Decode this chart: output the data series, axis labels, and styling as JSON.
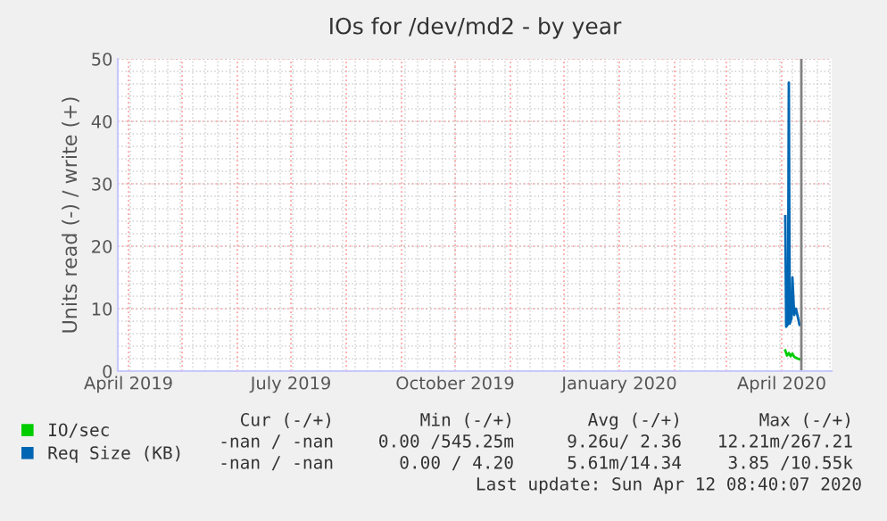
{
  "chart_data": {
    "type": "line",
    "title": "IOs for /dev/md2 - by year",
    "ylabel": "Units read (-) / write (+)",
    "xlim": [
      "2019-03-26",
      "2020-04-29"
    ],
    "xticks": [
      {
        "value": "2019-04-01",
        "label": "April 2019"
      },
      {
        "value": "2019-07-01",
        "label": "July 2019"
      },
      {
        "value": "2019-10-01",
        "label": "October 2019"
      },
      {
        "value": "2020-01-01",
        "label": "January 2020"
      },
      {
        "value": "2020-04-01",
        "label": "April 2020"
      }
    ],
    "ylim": [
      0,
      50
    ],
    "yticks": [
      0,
      10,
      20,
      30,
      40,
      50
    ],
    "grid": true,
    "legend": "bottom left",
    "marker": "none",
    "line_style": "solid",
    "series": [
      {
        "name": "IO/sec",
        "color": "#00cc00",
        "x": [
          "2020-04-03",
          "2020-04-04",
          "2020-04-05",
          "2020-04-06",
          "2020-04-07",
          "2020-04-08",
          "2020-04-10",
          "2020-04-11"
        ],
        "values": [
          3.3,
          2.5,
          2.9,
          2.4,
          2.8,
          2.3,
          2.0,
          1.9
        ]
      },
      {
        "name": "Req Size (KB)",
        "color": "#0066b3",
        "x": [
          "2020-04-03T00:00",
          "2020-04-03T12:00",
          "2020-04-04T12:00",
          "2020-04-05T00:00",
          "2020-04-05T12:00",
          "2020-04-06T12:00",
          "2020-04-07T00:00",
          "2020-04-08T00:00",
          "2020-04-09T00:00",
          "2020-04-11T00:00"
        ],
        "values": [
          24.8,
          7.1,
          7.5,
          46.2,
          7.6,
          8.5,
          15,
          9,
          10,
          7.4
        ]
      }
    ],
    "ref_lines": [
      {
        "axis": "x",
        "value": "2020-04-12",
        "color": "#808080"
      }
    ],
    "annotations": [
      "Cur (-/+)",
      "Min (-/+)",
      "Avg (-/+)",
      "Max (-/+)",
      "-nan / -nan",
      "0.00 /545.25m",
      "9.26u/ 2.36",
      "12.21m/267.21",
      "-nan / -nan",
      "0.00 / 4.20",
      "5.61m/14.34",
      "3.85 /10.55k",
      "Last update: Sun Apr 12 08:40:07 2020"
    ]
  }
}
